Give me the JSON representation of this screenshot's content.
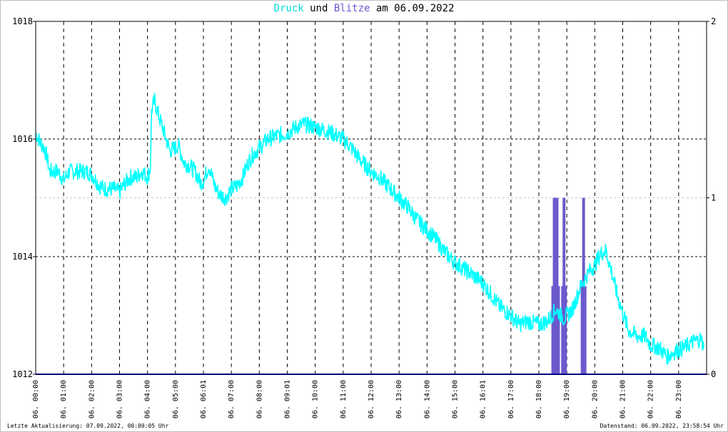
{
  "title": {
    "part1": "Druck",
    "part2": " und ",
    "part3": "Blitze",
    "part4": " am 06.09.2022"
  },
  "footer": {
    "left": "Letzte Aktualisierung: 07.09.2022, 00:00:05 Uhr",
    "right": "Datenstand: 06.09.2022, 23:58:54 Uhr"
  },
  "colors": {
    "pressure": "#00ffff",
    "lightning": "#6a5acd",
    "title_pressure": "#00dddd",
    "title_lightning": "#6a5acd",
    "baseline": "#000080"
  },
  "chart_data": {
    "type": "line",
    "x_range_hours": [
      0,
      24
    ],
    "y_left": {
      "range": [
        1012,
        1018
      ],
      "ticks": [
        "1012",
        "1014",
        "1016",
        "1018"
      ]
    },
    "y_right": {
      "range": [
        0,
        2
      ],
      "ticks": [
        "0",
        "1",
        "2"
      ]
    },
    "x_tick_labels": [
      "06. 00:00",
      "06. 01:00",
      "06. 02:00",
      "06. 03:00",
      "06. 04:00",
      "06. 05:00",
      "06. 06:01",
      "06. 07:00",
      "06. 08:00",
      "06. 09:01",
      "06. 10:00",
      "06. 11:00",
      "06. 12:00",
      "06. 13:00",
      "06. 14:00",
      "06. 15:00",
      "06. 16:01",
      "06. 17:00",
      "06. 18:00",
      "06. 19:00",
      "06. 20:00",
      "06. 21:00",
      "06. 22:00",
      "06. 23:00"
    ],
    "grid": true,
    "series": [
      {
        "name": "Druck",
        "axis": "left",
        "x_hours": [
          0,
          0.15,
          0.3,
          0.4,
          0.5,
          0.8,
          1.0,
          1.2,
          1.5,
          1.8,
          2.0,
          2.3,
          2.5,
          2.8,
          3.0,
          3.2,
          3.4,
          3.6,
          3.8,
          4.0,
          4.1,
          4.15,
          4.25,
          4.4,
          4.6,
          4.8,
          5.0,
          5.1,
          5.3,
          5.5,
          5.7,
          5.9,
          6.0,
          6.2,
          6.4,
          6.6,
          6.8,
          7.0,
          7.2,
          7.4,
          7.6,
          7.8,
          8.0,
          8.3,
          8.6,
          9.0,
          9.3,
          9.6,
          10.0,
          10.3,
          10.6,
          11.0,
          11.3,
          11.6,
          12.0,
          12.3,
          12.6,
          13.0,
          13.3,
          13.6,
          14.0,
          14.3,
          14.6,
          15.0,
          15.3,
          15.6,
          16.0,
          16.3,
          16.6,
          17.0,
          17.3,
          17.6,
          18.0,
          18.3,
          18.6,
          18.9,
          19.2,
          19.5,
          19.8,
          20.0,
          20.2,
          20.4,
          20.6,
          20.8,
          21.0,
          21.2,
          21.5,
          21.8,
          22.0,
          22.3,
          22.6,
          22.9,
          23.2,
          23.5,
          23.8,
          23.9
        ],
        "values": [
          1016.1,
          1015.95,
          1015.85,
          1015.7,
          1015.45,
          1015.45,
          1015.3,
          1015.45,
          1015.45,
          1015.45,
          1015.4,
          1015.2,
          1015.15,
          1015.15,
          1015.1,
          1015.25,
          1015.35,
          1015.35,
          1015.45,
          1015.35,
          1015.5,
          1016.5,
          1016.65,
          1016.4,
          1016.1,
          1015.8,
          1015.85,
          1015.9,
          1015.6,
          1015.55,
          1015.45,
          1015.25,
          1015.3,
          1015.55,
          1015.2,
          1015.05,
          1015.0,
          1015.15,
          1015.2,
          1015.35,
          1015.6,
          1015.75,
          1015.85,
          1016.0,
          1016.05,
          1016.1,
          1016.2,
          1016.25,
          1016.2,
          1016.15,
          1016.1,
          1016.0,
          1015.85,
          1015.65,
          1015.45,
          1015.35,
          1015.2,
          1015.0,
          1014.85,
          1014.65,
          1014.45,
          1014.3,
          1014.1,
          1013.9,
          1013.8,
          1013.7,
          1013.55,
          1013.35,
          1013.15,
          1013.0,
          1012.85,
          1012.9,
          1012.85,
          1012.9,
          1013.1,
          1012.95,
          1013.1,
          1013.5,
          1013.75,
          1013.85,
          1014.05,
          1014.1,
          1013.75,
          1013.35,
          1013.05,
          1012.75,
          1012.65,
          1012.65,
          1012.5,
          1012.45,
          1012.3,
          1012.4,
          1012.45,
          1012.55,
          1012.6,
          1012.45
        ]
      },
      {
        "name": "Blitze",
        "axis": "right",
        "type": "bar",
        "x_hours": [
          18.55,
          18.65,
          18.9,
          19.6
        ],
        "values": [
          1,
          1,
          1,
          1
        ],
        "inner_values": [
          0.5,
          0.5,
          0.5,
          0.5
        ]
      }
    ]
  }
}
